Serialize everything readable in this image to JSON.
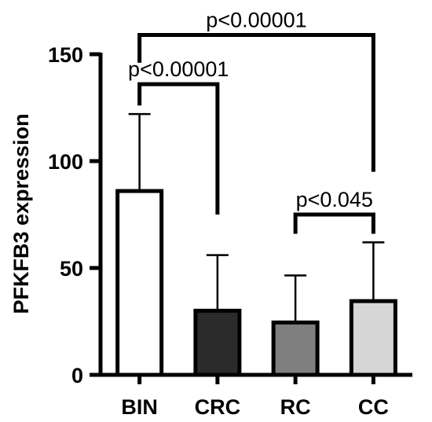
{
  "chart_data": {
    "type": "bar",
    "categories": [
      "BIN",
      "CRC",
      "RC",
      "CC"
    ],
    "values": [
      86,
      30,
      24.5,
      34.5
    ],
    "errors": [
      36,
      26,
      22,
      27.5
    ],
    "colors": [
      "#ffffff",
      "#2b2b2b",
      "#7f7f7f",
      "#d6d6d6"
    ],
    "ylabel": "PFKFB3 expression",
    "xlabel": "",
    "ylim": [
      0,
      150
    ],
    "yticks": [
      0,
      50,
      100,
      150
    ],
    "ytick_labels": [
      "0",
      "50",
      "100",
      "150"
    ],
    "significance": [
      {
        "from": 0,
        "to": 3,
        "label": "p<0.00001",
        "left_y": 146,
        "right_y": 95,
        "bar_y": 159
      },
      {
        "from": 0,
        "to": 1,
        "label": "p<0.00001",
        "left_y": 126,
        "right_y": 75,
        "bar_y": 136
      },
      {
        "from": 2,
        "to": 3,
        "label": "p<0.045",
        "left_y": 66,
        "right_y": 66,
        "bar_y": 75
      }
    ]
  }
}
